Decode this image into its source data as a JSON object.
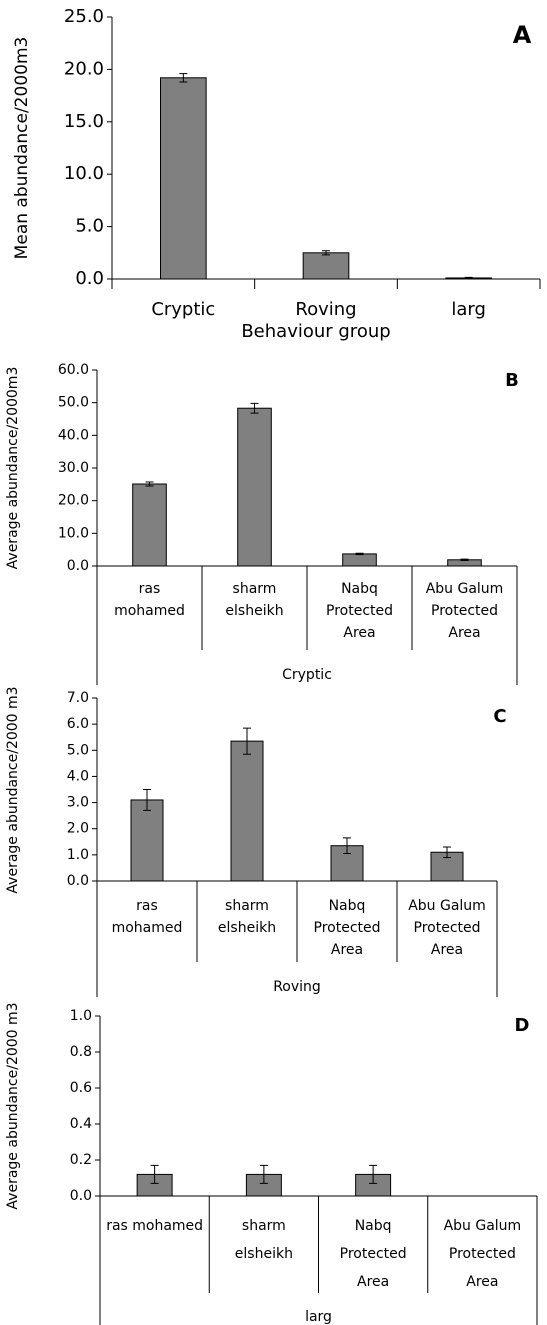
{
  "chart_data": [
    {
      "type": "bar",
      "panel_label": "A",
      "ylabel": "Mean abundance/2000m3",
      "xlabel": "Behaviour group",
      "categories": [
        "Cryptic",
        "Roving",
        "larg"
      ],
      "values": [
        19.2,
        2.5,
        0.1
      ],
      "errors": [
        0.4,
        0.2,
        0.05
      ],
      "color": "#808080",
      "ylim": [
        0,
        25
      ],
      "yticks": [
        {
          "value": 0,
          "label": "0.0"
        },
        {
          "value": 5,
          "label": "5.0"
        },
        {
          "value": 10,
          "label": "10.0"
        },
        {
          "value": 15,
          "label": "15.0"
        },
        {
          "value": 20,
          "label": "20.0"
        },
        {
          "value": 25,
          "label": "25.0"
        }
      ]
    },
    {
      "type": "bar",
      "panel_label": "B",
      "ylabel": "Average abundance/2000m3",
      "group_label": "Cryptic",
      "categories": [
        "ras mohamed",
        "sharm elsheikh",
        "Nabq Protected Area",
        "Abu Galum Protected Area"
      ],
      "values": [
        25.1,
        48.3,
        3.7,
        1.9
      ],
      "errors": [
        0.6,
        1.5,
        0.2,
        0.2
      ],
      "color": "#808080",
      "ylim": [
        0,
        60
      ],
      "yticks": [
        {
          "value": 0,
          "label": "0.0"
        },
        {
          "value": 10,
          "label": "10.0"
        },
        {
          "value": 20,
          "label": "20.0"
        },
        {
          "value": 30,
          "label": "30.0"
        },
        {
          "value": 40,
          "label": "40.0"
        },
        {
          "value": 50,
          "label": "50.0"
        },
        {
          "value": 60,
          "label": "60.0"
        }
      ]
    },
    {
      "type": "bar",
      "panel_label": "C",
      "ylabel": "Average abundance/2000 m3",
      "group_label": "Roving",
      "categories": [
        "ras mohamed",
        "sharm elsheikh",
        "Nabq Protected Area",
        "Abu Galum Protected Area"
      ],
      "values": [
        3.1,
        5.35,
        1.35,
        1.1
      ],
      "errors": [
        0.4,
        0.5,
        0.3,
        0.2
      ],
      "color": "#808080",
      "ylim": [
        0,
        7
      ],
      "yticks": [
        {
          "value": 0,
          "label": "0.0"
        },
        {
          "value": 1,
          "label": "1.0"
        },
        {
          "value": 2,
          "label": "2.0"
        },
        {
          "value": 3,
          "label": "3.0"
        },
        {
          "value": 4,
          "label": "4.0"
        },
        {
          "value": 5,
          "label": "5.0"
        },
        {
          "value": 6,
          "label": "6.0"
        },
        {
          "value": 7,
          "label": "7.0"
        }
      ]
    },
    {
      "type": "bar",
      "panel_label": "D",
      "ylabel": "Average abundance/2000 m3",
      "group_label": "larg",
      "categories": [
        "ras mohamed",
        "sharm elsheikh",
        "Nabq Protected Area",
        "Abu Galum Protected Area"
      ],
      "values": [
        0.12,
        0.12,
        0.12,
        0
      ],
      "errors": [
        0.05,
        0.05,
        0.05,
        null
      ],
      "color": "#808080",
      "ylim": [
        0,
        1
      ],
      "yticks": [
        {
          "value": 0,
          "label": "0.0"
        },
        {
          "value": 0.2,
          "label": "0.2"
        },
        {
          "value": 0.4,
          "label": "0.4"
        },
        {
          "value": 0.6,
          "label": "0.6"
        },
        {
          "value": 0.8,
          "label": "0.8"
        },
        {
          "value": 1,
          "label": "1.0"
        }
      ]
    }
  ]
}
